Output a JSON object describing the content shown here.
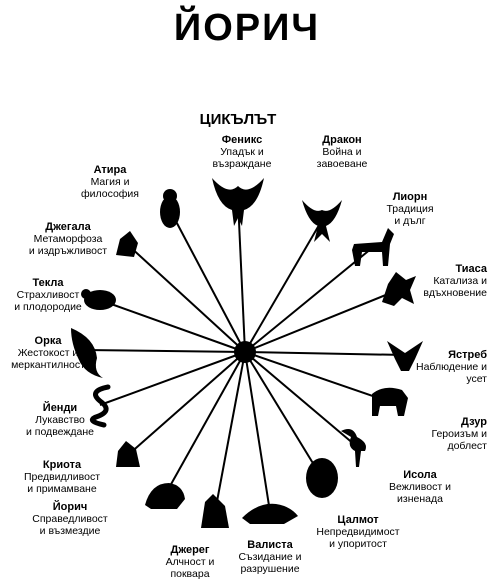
{
  "title": "ЙОРИЧ",
  "subtitle": "ЦИКЪЛЪТ",
  "colors": {
    "ink": "#000000",
    "paper": "#ffffff"
  },
  "houses": [
    {
      "id": "phoenix",
      "name": "Феникс",
      "desc": [
        "Упадък и",
        "възраждане"
      ],
      "icon": "phoenix-icon"
    },
    {
      "id": "dragon",
      "name": "Дракон",
      "desc": [
        "Война и",
        "завоеване"
      ],
      "icon": "dragon-icon"
    },
    {
      "id": "liorn",
      "name": "Лиорн",
      "desc": [
        "Традиция",
        "и дълг"
      ],
      "icon": "liorn-icon"
    },
    {
      "id": "tiassa",
      "name": "Тиаса",
      "desc": [
        "Катализа и",
        "вдъхновение"
      ],
      "icon": "tiassa-icon"
    },
    {
      "id": "jhereg-hawk",
      "name": "Ястреб",
      "desc": [
        "Наблюдение и",
        "усет"
      ],
      "icon": "hawk-icon"
    },
    {
      "id": "dzur",
      "name": "Дзур",
      "desc": [
        "Героизъм и",
        "доблест"
      ],
      "icon": "dzur-icon"
    },
    {
      "id": "issola",
      "name": "Исола",
      "desc": [
        "Вежливост и",
        "изненада"
      ],
      "icon": "issola-icon"
    },
    {
      "id": "tsalmoth",
      "name": "Цалмот",
      "desc": [
        "Непредвидимост",
        "и упоритост"
      ],
      "icon": "tsalmoth-icon"
    },
    {
      "id": "vallista",
      "name": "Валиста",
      "desc": [
        "Съзидание и",
        "разрушение"
      ],
      "icon": "vallista-icon"
    },
    {
      "id": "jhereg",
      "name": "Джерег",
      "desc": [
        "Алчност и",
        "поквара"
      ],
      "icon": "jhereg-icon"
    },
    {
      "id": "yendi-jorich",
      "name": "Йорич",
      "desc": [
        "Справедливост",
        "и възмездие"
      ],
      "icon": "jorich-icon"
    },
    {
      "id": "chreotha",
      "name": "Криота",
      "desc": [
        "Предвидливост",
        "и примамване"
      ],
      "icon": "chreotha-icon"
    },
    {
      "id": "yendi",
      "name": "Йенди",
      "desc": [
        "Лукавство",
        "и подвеждане"
      ],
      "icon": "yendi-icon"
    },
    {
      "id": "orca",
      "name": "Орка",
      "desc": [
        "Жестокост и",
        "меркантилност"
      ],
      "icon": "orca-icon"
    },
    {
      "id": "teckla",
      "name": "Текла",
      "desc": [
        "Страхливост",
        "и плодородие"
      ],
      "icon": "teckla-icon"
    },
    {
      "id": "jhegaala",
      "name": "Джегала",
      "desc": [
        "Метаморфоза",
        "и издръжливост"
      ],
      "icon": "jhegaala-icon"
    },
    {
      "id": "athyra",
      "name": "Атира",
      "desc": [
        "Магия и",
        "философия"
      ],
      "icon": "athyra-icon"
    }
  ]
}
